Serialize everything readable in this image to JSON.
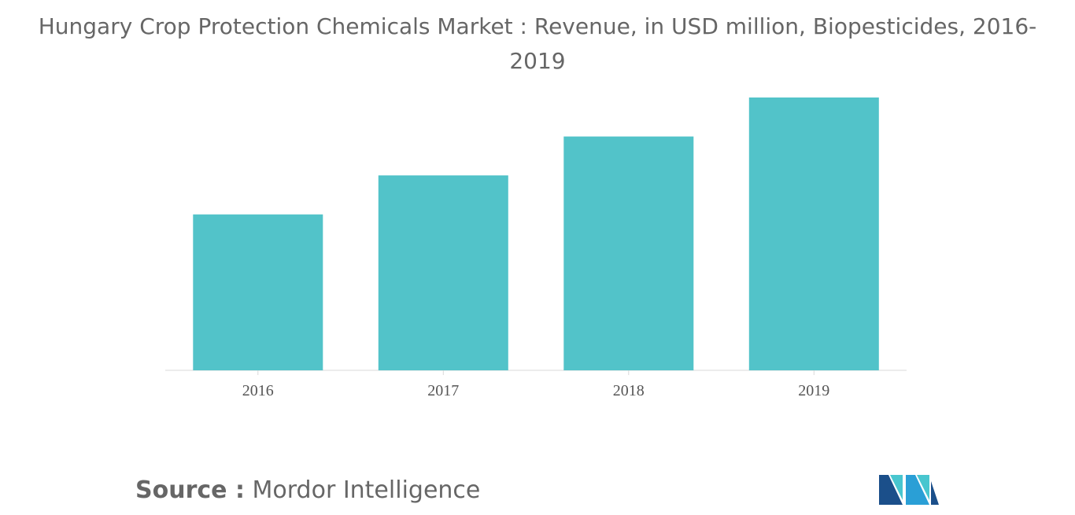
{
  "title": "Hungary Crop Protection Chemicals Market : Revenue, in USD million, Biopesticides, 2016-2019",
  "source": {
    "label": "Source :",
    "value": "Mordor Intelligence"
  },
  "logo": {
    "icon": "mordor-intelligence-logo",
    "colors": [
      "#1b4f8a",
      "#2a9fd6",
      "#48c6cf"
    ]
  },
  "chart_data": {
    "type": "bar",
    "categories": [
      "2016",
      "2017",
      "2018",
      "2019"
    ],
    "values": [
      4.0,
      5.0,
      6.0,
      7.0
    ],
    "title": "Hungary Crop Protection Chemicals Market : Revenue, in USD million, Biopesticides, 2016-2019",
    "xlabel": "",
    "ylabel": "",
    "ylim": [
      0,
      7.0
    ],
    "grid": false,
    "legend": "none",
    "bar_color": "#52c3c9",
    "axis_color": "#d9d9d9"
  }
}
